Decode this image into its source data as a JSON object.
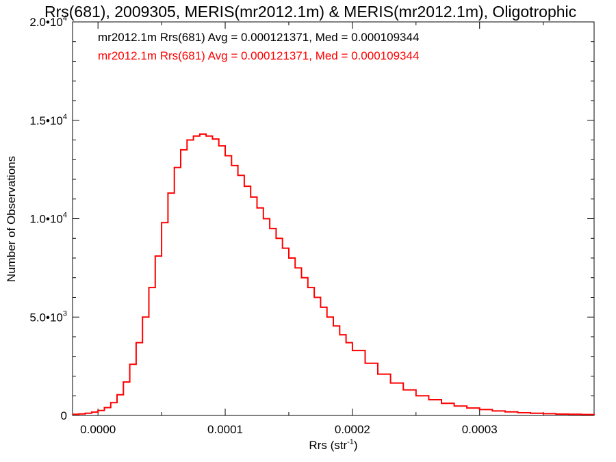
{
  "chart_data": {
    "type": "line",
    "title": "Rrs(681), 2009305, MERIS(mr2012.1m) & MERIS(mr2012.1m), Oligotrophic",
    "xlabel_main": "Rrs (str",
    "xlabel_sup": "-1",
    "xlabel_close": ")",
    "ylabel": "Number of Observations",
    "xlim": [
      -2e-05,
      0.00039
    ],
    "ylim": [
      0,
      20000
    ],
    "x_ticks": [
      {
        "value": 0.0,
        "label": "0.0000"
      },
      {
        "value": 0.0001,
        "label": "0.0001"
      },
      {
        "value": 0.0002,
        "label": "0.0002"
      },
      {
        "value": 0.0003,
        "label": "0.0003"
      }
    ],
    "y_ticks": [
      {
        "value": 0,
        "mant": "0",
        "exp": ""
      },
      {
        "value": 5000,
        "mant": "5.0•10",
        "exp": "3"
      },
      {
        "value": 10000,
        "mant": "1.0•10",
        "exp": "4"
      },
      {
        "value": 15000,
        "mant": "1.5•10",
        "exp": "4"
      },
      {
        "value": 20000,
        "mant": "2.0•10",
        "exp": "4"
      }
    ],
    "grid": false,
    "legend_placement": "top-left",
    "series": [
      {
        "name": "mr2012.1m Rrs(681) Avg = 0.000121371, Med = 0.000109344",
        "color": "#000000",
        "x": [],
        "y": []
      },
      {
        "name": "mr2012.1m Rrs(681) Avg = 0.000121371, Med = 0.000109344",
        "color": "#ff0000",
        "x": [
          -2e-05,
          -1.5e-05,
          -1e-05,
          -5e-06,
          0.0,
          5e-06,
          1e-05,
          1.5e-05,
          2e-05,
          2.5e-05,
          3e-05,
          3.5e-05,
          4e-05,
          4.5e-05,
          5e-05,
          5.5e-05,
          6e-05,
          6.5e-05,
          7e-05,
          7.5e-05,
          8e-05,
          8.5e-05,
          9e-05,
          9.5e-05,
          0.0001,
          0.000105,
          0.00011,
          0.000115,
          0.00012,
          0.000125,
          0.00013,
          0.000135,
          0.00014,
          0.000145,
          0.00015,
          0.000155,
          0.00016,
          0.000165,
          0.00017,
          0.000175,
          0.00018,
          0.000185,
          0.00019,
          0.000195,
          0.0002,
          0.00021,
          0.00022,
          0.00023,
          0.00024,
          0.00025,
          0.00026,
          0.00027,
          0.00028,
          0.00029,
          0.0003,
          0.00031,
          0.00032,
          0.00033,
          0.00034,
          0.00035,
          0.00036,
          0.00037,
          0.00038,
          0.00039
        ],
        "y": [
          60,
          80,
          110,
          170,
          250,
          400,
          650,
          1050,
          1700,
          2600,
          3700,
          5000,
          6500,
          8100,
          9800,
          11300,
          12600,
          13500,
          14000,
          14200,
          14300,
          14200,
          14050,
          13700,
          13200,
          12700,
          12200,
          11650,
          11100,
          10550,
          10000,
          9500,
          9000,
          8500,
          8000,
          7500,
          7000,
          6500,
          6000,
          5500,
          5000,
          4550,
          4100,
          3700,
          3300,
          2650,
          2100,
          1650,
          1300,
          1000,
          800,
          620,
          480,
          380,
          300,
          230,
          180,
          140,
          110,
          90,
          70,
          60,
          50,
          40
        ]
      }
    ]
  }
}
